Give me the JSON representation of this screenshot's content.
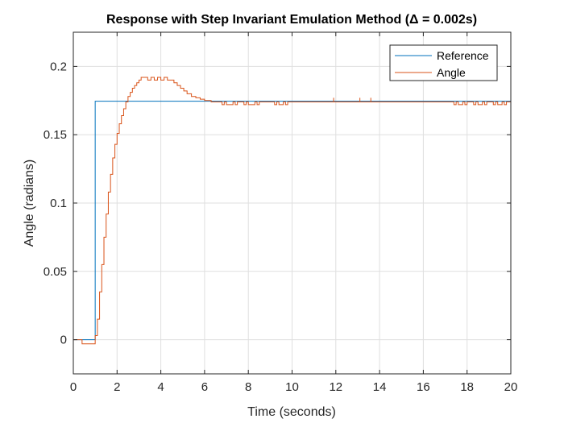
{
  "chart_data": {
    "type": "line",
    "title": "Response with Step Invariant Emulation Method (Δ = 0.002s)",
    "xlabel": "Time (seconds)",
    "ylabel": "Angle (radians)",
    "xlim": [
      0,
      20
    ],
    "ylim": [
      -0.025,
      0.225
    ],
    "x_ticks": [
      0,
      2,
      4,
      6,
      8,
      10,
      12,
      14,
      16,
      18,
      20
    ],
    "y_ticks": [
      0,
      0.05,
      0.1,
      0.15,
      0.2
    ],
    "x_tick_labels": [
      "0",
      "2",
      "4",
      "6",
      "8",
      "10",
      "12",
      "14",
      "16",
      "18",
      "20"
    ],
    "y_tick_labels": [
      "0",
      "0.05",
      "0.1",
      "0.15",
      "0.2"
    ],
    "grid": true,
    "legend_position": "top-right",
    "series": [
      {
        "name": "Reference",
        "color": "#0072BD",
        "step": true,
        "x": [
          0,
          1,
          1,
          20
        ],
        "y": [
          0,
          0,
          0.1745,
          0.1745
        ]
      },
      {
        "name": "Angle",
        "color": "#D95319",
        "step": true,
        "x": [
          0,
          0.4,
          0.4,
          1.0,
          1.0,
          1.1,
          1.2,
          1.3,
          1.4,
          1.5,
          1.6,
          1.7,
          1.8,
          1.9,
          2.0,
          2.1,
          2.2,
          2.3,
          2.4,
          2.5,
          2.6,
          2.7,
          2.8,
          2.9,
          3.0,
          3.1,
          3.25,
          3.4,
          3.55,
          3.7,
          3.85,
          4.0,
          4.15,
          4.3,
          4.45,
          4.6,
          4.75,
          4.9,
          5.05,
          5.2,
          5.4,
          5.6,
          5.8,
          6.0,
          6.3,
          6.6,
          6.8,
          6.9,
          7.0,
          7.3,
          7.4,
          7.5,
          7.8,
          7.9,
          8.0,
          8.3,
          8.4,
          8.5,
          9.2,
          9.3,
          9.4,
          9.6,
          9.7,
          9.8,
          11.9,
          11.9,
          12.0,
          13.1,
          13.1,
          13.2,
          13.6,
          13.6,
          13.7,
          17.4,
          17.5,
          17.6,
          17.8,
          17.9,
          18.0,
          18.3,
          18.4,
          18.5,
          18.7,
          18.8,
          18.9,
          19.2,
          19.3,
          19.4,
          19.6,
          19.7,
          19.8,
          20.0
        ],
        "y": [
          0,
          0,
          -0.003,
          -0.003,
          0.003,
          0.015,
          0.035,
          0.055,
          0.075,
          0.092,
          0.108,
          0.121,
          0.133,
          0.143,
          0.151,
          0.158,
          0.164,
          0.169,
          0.174,
          0.178,
          0.181,
          0.184,
          0.186,
          0.188,
          0.19,
          0.192,
          0.192,
          0.19,
          0.192,
          0.19,
          0.192,
          0.19,
          0.192,
          0.19,
          0.19,
          0.188,
          0.186,
          0.184,
          0.182,
          0.18,
          0.178,
          0.177,
          0.176,
          0.175,
          0.174,
          0.174,
          0.172,
          0.174,
          0.172,
          0.174,
          0.172,
          0.174,
          0.172,
          0.174,
          0.172,
          0.174,
          0.172,
          0.174,
          0.172,
          0.174,
          0.172,
          0.174,
          0.172,
          0.174,
          0.177,
          0.174,
          0.174,
          0.177,
          0.174,
          0.174,
          0.177,
          0.174,
          0.174,
          0.172,
          0.174,
          0.172,
          0.174,
          0.172,
          0.174,
          0.172,
          0.174,
          0.172,
          0.174,
          0.172,
          0.174,
          0.172,
          0.174,
          0.172,
          0.174,
          0.172,
          0.174,
          0.172
        ]
      }
    ]
  }
}
